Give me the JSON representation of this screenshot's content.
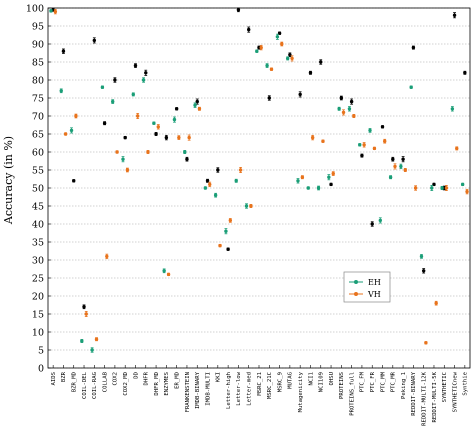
{
  "chart_data": {
    "type": "scatter",
    "ylabel": "Accuracy (in %)",
    "ylim": [
      0,
      100
    ],
    "yticks": [
      0,
      5,
      10,
      15,
      20,
      25,
      30,
      35,
      40,
      45,
      50,
      55,
      60,
      65,
      70,
      75,
      80,
      85,
      90,
      95,
      100
    ],
    "grid": true,
    "legend_position": "right-middle",
    "colors": {
      "EH": "#1a9e77",
      "VH": "#e8731c",
      "other": "#000000"
    },
    "categories": [
      "AIDS",
      "BZR",
      "BZR_MD",
      "COIL-DEL",
      "COIL-RAG",
      "COLLAB",
      "COX2",
      "COX2_MD",
      "DD",
      "DHFR",
      "DHFR_MD",
      "ENZYMES",
      "ER_MD",
      "FRANKENSTEIN",
      "IMDB-BINARY",
      "IMDB-MULTI",
      "KKI",
      "Letter-high",
      "Letter-low",
      "Letter-med",
      "MSRC_21",
      "MSRC_21C",
      "MSRC_9",
      "MUTAG",
      "Mutagenicity",
      "NCI1",
      "NCI109",
      "OHSU",
      "PROTEINS",
      "PROTEINS_full",
      "PTC_FM",
      "PTC_FR",
      "PTC_MM",
      "PTC_MR",
      "Peking_1",
      "REDDIT-BINARY",
      "REDDIT-MULTI-12K",
      "REDDIT-MULTI-5K",
      "SYNTHETIC",
      "SYNTHETICnew",
      "Synthie"
    ],
    "series": [
      {
        "name": "EH",
        "values": [
          99.2,
          77.0,
          66.0,
          7.5,
          5.0,
          78.0,
          74.0,
          58.0,
          76.0,
          80.0,
          68.0,
          27.0,
          69.0,
          60.0,
          73.0,
          50.0,
          48.0,
          38.0,
          52.0,
          45.0,
          88.0,
          84.0,
          92.0,
          86.0,
          52.0,
          50.0,
          50.0,
          53.0,
          72.0,
          72.0,
          62.0,
          66.0,
          41.0,
          53.0,
          56.0,
          78.0,
          31.0,
          50.0,
          50.0,
          72.0,
          51.0
        ]
      },
      {
        "name": "VH",
        "values": [
          99.0,
          65.0,
          70.0,
          15.0,
          8.0,
          31.0,
          60.0,
          55.0,
          70.0,
          60.0,
          67.0,
          26.0,
          64.0,
          64.0,
          72.0,
          51.0,
          34.0,
          41.0,
          55.0,
          45.0,
          89.0,
          83.0,
          90.0,
          86.0,
          53.0,
          64.0,
          63.0,
          54.0,
          71.0,
          70.0,
          62.0,
          61.0,
          63.0,
          56.0,
          55.0,
          50.0,
          7.0,
          18.0,
          50.0,
          61.0,
          49.0
        ]
      },
      {
        "name": "",
        "values": [
          99.5,
          88.0,
          52.0,
          17.0,
          91.0,
          68.0,
          80.0,
          64.0,
          84.0,
          82.0,
          65.0,
          64.0,
          72.0,
          58.0,
          74.0,
          52.0,
          55.0,
          33.0,
          99.5,
          94.0,
          89.0,
          75.0,
          93.0,
          87.0,
          76.0,
          82.0,
          85.0,
          51.0,
          75.0,
          74.0,
          59.0,
          40.0,
          67.0,
          58.0,
          58.0,
          89.0,
          27.0,
          51.0,
          50.0,
          98.0,
          82.0
        ]
      }
    ]
  }
}
